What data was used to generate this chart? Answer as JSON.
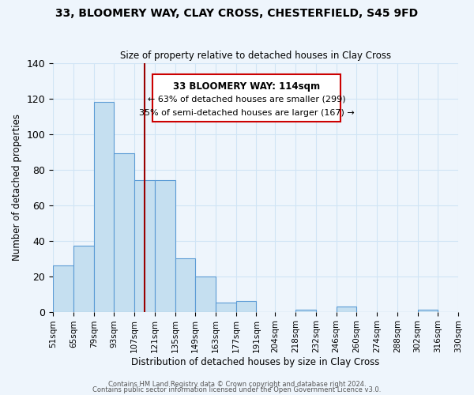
{
  "title": "33, BLOOMERY WAY, CLAY CROSS, CHESTERFIELD, S45 9FD",
  "subtitle": "Size of property relative to detached houses in Clay Cross",
  "xlabel": "Distribution of detached houses by size in Clay Cross",
  "ylabel": "Number of detached properties",
  "bin_labels": [
    "51sqm",
    "65sqm",
    "79sqm",
    "93sqm",
    "107sqm",
    "121sqm",
    "135sqm",
    "149sqm",
    "163sqm",
    "177sqm",
    "191sqm",
    "204sqm",
    "218sqm",
    "232sqm",
    "246sqm",
    "260sqm",
    "274sqm",
    "288sqm",
    "302sqm",
    "316sqm",
    "330sqm"
  ],
  "bar_heights": [
    26,
    37,
    118,
    89,
    74,
    74,
    30,
    20,
    5,
    6,
    0,
    0,
    1,
    0,
    3,
    0,
    0,
    0,
    1,
    0
  ],
  "bar_color": "#c5dff0",
  "bar_edge_color": "#5b9bd5",
  "property_line_x": 114,
  "bin_edges_sqm": [
    51,
    65,
    79,
    93,
    107,
    121,
    135,
    149,
    163,
    177,
    191,
    204,
    218,
    232,
    246,
    260,
    274,
    288,
    302,
    316,
    330
  ],
  "annotation_title": "33 BLOOMERY WAY: 114sqm",
  "annotation_line1": "← 63% of detached houses are smaller (299)",
  "annotation_line2": "35% of semi-detached houses are larger (167) →",
  "annotation_box_color": "#ffffff",
  "annotation_box_edge": "#cc0000",
  "vline_color": "#990000",
  "footer_line1": "Contains HM Land Registry data © Crown copyright and database right 2024.",
  "footer_line2": "Contains public sector information licensed under the Open Government Licence v3.0.",
  "ylim": [
    0,
    140
  ],
  "xlim_left": 51,
  "xlim_right": 330,
  "grid_color": "#d0e4f5",
  "bg_color": "#eef5fc"
}
